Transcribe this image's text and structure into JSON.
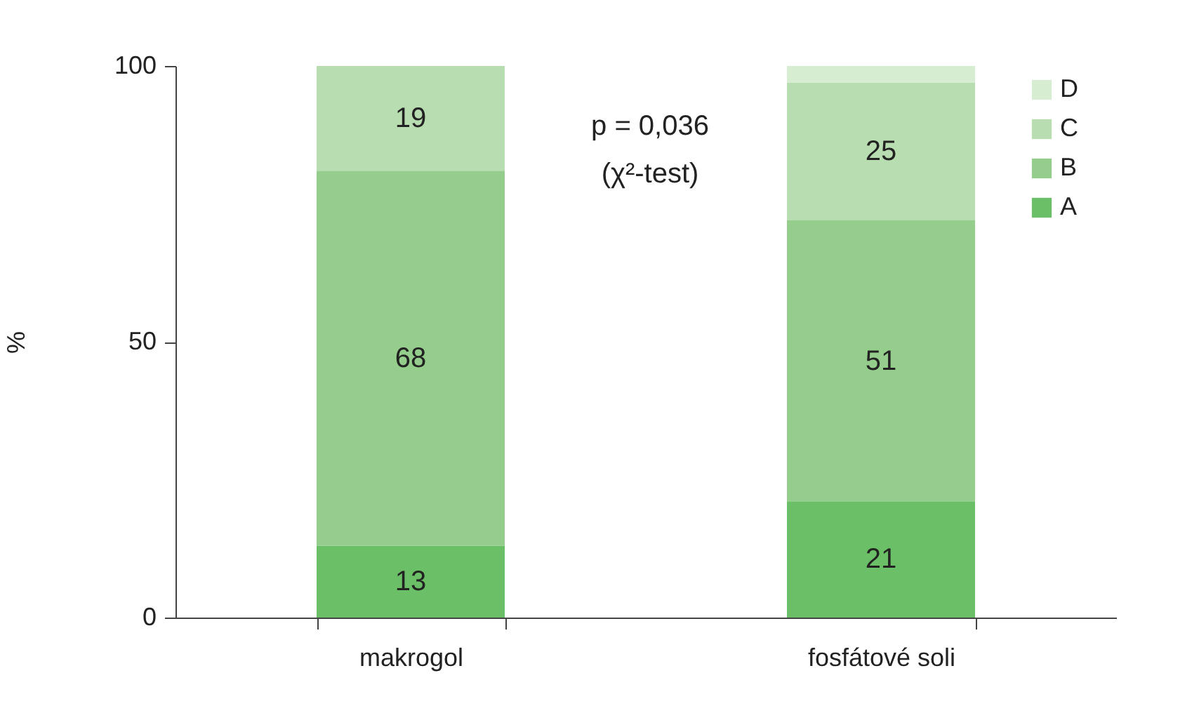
{
  "chart_data": {
    "type": "bar",
    "stacked": true,
    "ylabel": "%",
    "categories": [
      "makrogol",
      "fosfátové soli"
    ],
    "ylim": [
      0,
      100
    ],
    "yticks": [
      0,
      50,
      100
    ],
    "grid": false,
    "legend": "top right",
    "annotations": [
      "p = 0,036",
      "(χ²-test)"
    ],
    "series": [
      {
        "name": "A",
        "color": "#6bbf67",
        "values": [
          13,
          21
        ],
        "value_labels": [
          "13",
          "21"
        ]
      },
      {
        "name": "B",
        "color": "#95ce8c",
        "values": [
          68,
          51
        ],
        "value_labels": [
          "68",
          "51"
        ]
      },
      {
        "name": "C",
        "color": "#b8ddb0",
        "values": [
          19,
          25
        ],
        "value_labels": [
          "19",
          "25"
        ]
      },
      {
        "name": "D",
        "color": "#d7edd2",
        "values": [
          null,
          3
        ],
        "value_labels": [
          null,
          null
        ]
      }
    ]
  }
}
